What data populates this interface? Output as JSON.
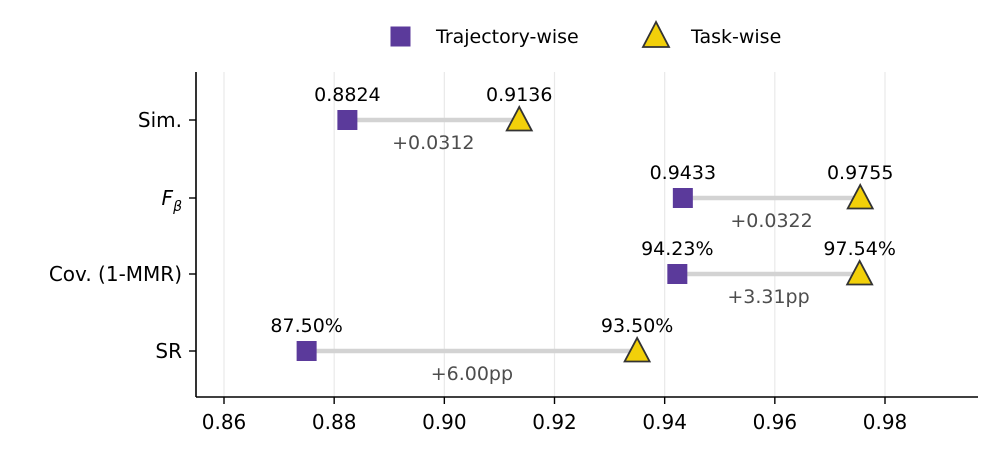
{
  "chart_data": {
    "type": "dumbbell",
    "title": "",
    "xlabel": "",
    "ylabel": "",
    "xlim": [
      0.855,
      0.995
    ],
    "x_ticks": [
      0.86,
      0.88,
      0.9,
      0.92,
      0.94,
      0.96,
      0.98
    ],
    "x_tick_labels": [
      "0.86",
      "0.88",
      "0.90",
      "0.92",
      "0.94",
      "0.96",
      "0.98"
    ],
    "grid": true,
    "legend_position": "top-center",
    "series": [
      {
        "name": "Trajectory-wise",
        "marker": "square",
        "color": "#5b3a9b"
      },
      {
        "name": "Task-wise",
        "marker": "triangle",
        "color": "#f2d00a",
        "edge_color": "#333333"
      }
    ],
    "categories": [
      {
        "name": "Sim.",
        "label_parts": [
          {
            "text": "Sim.",
            "italic": false
          }
        ],
        "trajectory_wise": 0.8824,
        "task_wise": 0.9136,
        "trajectory_label": "0.8824",
        "task_label": "0.9136",
        "delta_label": "+0.0312"
      },
      {
        "name": "F_beta",
        "label_parts": [
          {
            "text": "F",
            "italic": true
          },
          {
            "text": "β",
            "italic": true,
            "subscript": true
          }
        ],
        "trajectory_wise": 0.9433,
        "task_wise": 0.9755,
        "trajectory_label": "0.9433",
        "task_label": "0.9755",
        "delta_label": "+0.0322"
      },
      {
        "name": "Cov. (1-MMR)",
        "label_parts": [
          {
            "text": "Cov. (1-MMR)",
            "italic": false
          }
        ],
        "trajectory_wise": 0.9423,
        "task_wise": 0.9754,
        "trajectory_label": "94.23%",
        "task_label": "97.54%",
        "delta_label": "+3.31pp"
      },
      {
        "name": "SR",
        "label_parts": [
          {
            "text": "SR",
            "italic": false
          }
        ],
        "trajectory_wise": 0.875,
        "task_wise": 0.935,
        "trajectory_label": "87.50%",
        "task_label": "93.50%",
        "delta_label": "+6.00pp"
      }
    ]
  }
}
